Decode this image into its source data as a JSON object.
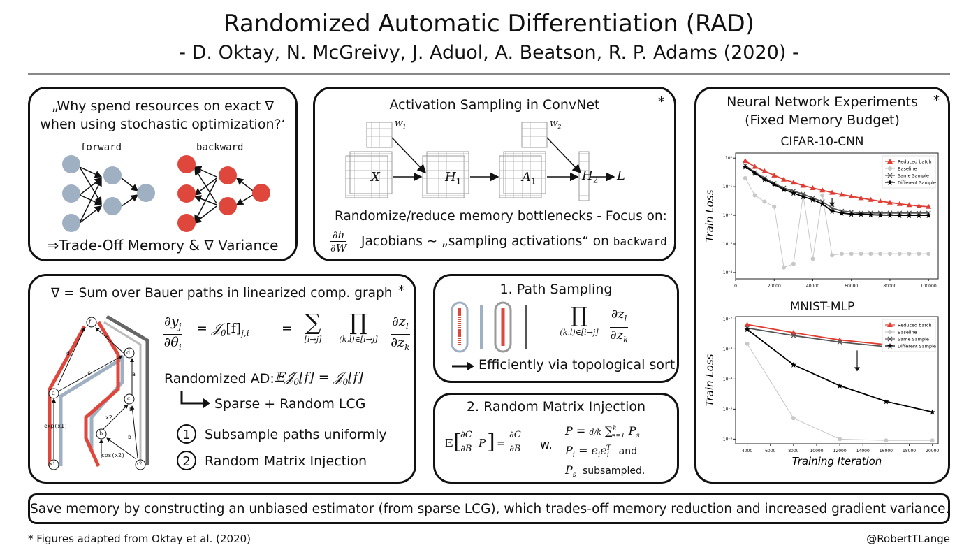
{
  "header": {
    "title": "Randomized Automatic Differentiation (RAD)",
    "authors": "- D. Oktay, N. McGreivy, J. Aduol, A. Beatson, R. P. Adams (2020) -"
  },
  "panel_why": {
    "quote_line1": "„Why spend resources on exact ∇",
    "quote_line2": "when using stochastic optimization?‘",
    "forward_label": "forward",
    "backward_label": "backward",
    "tradeoff": "⇒Trade-Off Memory & ∇ Variance",
    "colors": {
      "forward": "#9fb0c3",
      "backward": "#e0473c"
    }
  },
  "panel_conv": {
    "title": "Activation Sampling in ConvNet",
    "star": "*",
    "nodes": [
      "X",
      "H",
      "A",
      "H",
      "L"
    ],
    "node_subs": [
      "",
      "1",
      "1",
      "2",
      ""
    ],
    "weights": [
      "W",
      "W"
    ],
    "weight_subs": [
      "1",
      "2"
    ],
    "line1": "Randomize/reduce memory bottlenecks - Focus on:",
    "frac_num": "∂h",
    "frac_den": "∂W",
    "line2_a": "Jacobians ∼ „sampling activations“ on",
    "line2_b": "backward"
  },
  "panel_bauer": {
    "title": "∇ = Sum over Bauer paths in linearized comp. graph",
    "star": "*",
    "graph_nodes": [
      "f",
      "d",
      "a",
      "c",
      "b",
      "x1",
      "x2"
    ],
    "edge_labels": [
      "d",
      "a",
      "c",
      "exp(x1)",
      "x2",
      "b",
      "cos(x2)",
      "a",
      "b"
    ],
    "eq_lhs_num": "∂y",
    "eq_lhs_num_sub": "j",
    "eq_lhs_den": "∂θ",
    "eq_lhs_den_sub": "i",
    "eq_jac": "= 𝒥",
    "eq_jac_sub": "θ",
    "eq_jac_arg": "[f]",
    "eq_jac_idx": "j,i",
    "eq_eq": "=",
    "sum_sym": "∑",
    "sum_sub": "[i→j]",
    "prod_sym": "∏",
    "prod_sub": "(k,l)∈[i→j]",
    "frac_num": "∂z",
    "frac_num_sub": "l",
    "frac_den": "∂z",
    "frac_den_sub": "k",
    "rad_label": "Randomized AD:",
    "rad_eq": "𝔼𝒥̂",
    "rad_eq_sub": "θ",
    "rad_eq_rest": "[f] = 𝒥",
    "rad_eq_rest_sub": "θ",
    "rad_eq_end": "[f]",
    "sparse": "Sparse + Random LCG",
    "items": [
      {
        "num": "1",
        "text": "Subsample paths uniformly"
      },
      {
        "num": "2",
        "text": "Random Matrix Injection"
      }
    ]
  },
  "panel_path": {
    "title": "1. Path Sampling",
    "prod_sym": "∏",
    "prod_sub": "(k,l)∈[i→j]",
    "frac_num": "∂z",
    "frac_num_sub": "l",
    "frac_den": "∂z",
    "frac_den_sub": "k",
    "efficient": "Efficiently via topological sort"
  },
  "panel_rmi": {
    "title": "2. Random Matrix Injection",
    "lhs": "𝔼",
    "lhs_num": "∂C",
    "lhs_den": "∂B",
    "lhs_P": "P",
    "eq": "=",
    "rhs_num": "∂C",
    "rhs_den": "∂B",
    "w": "w.",
    "def1_lhs": "P =",
    "def1_frac": "d/k",
    "def1_sum": "∑",
    "def1_sum_top": "k",
    "def1_sum_sub": "s=1",
    "def1_term": "P",
    "def1_term_sub": "s",
    "def2_lhs": "P",
    "def2_lhs_sub": "i",
    "def2_eq": "= e",
    "def2_e_sub": "i",
    "def2_e2": "e",
    "def2_e2_sub": "i",
    "def2_e2_sup": "T",
    "def2_and": "and",
    "def3": "P",
    "def3_sub": "s",
    "def3_rest": "subsampled."
  },
  "panel_nn": {
    "title_line1": "Neural Network Experiments",
    "title_line2": "(Fixed Memory Budget)",
    "star": "*"
  },
  "chart_data": [
    {
      "type": "line",
      "title": "CIFAR-10-CNN",
      "xlabel": "",
      "ylabel": "Train Loss",
      "yscale": "log",
      "ylim": [
        6e-05,
        1.5
      ],
      "xlim": [
        0,
        105000
      ],
      "x_ticks": [
        "0",
        "20000",
        "40000",
        "60000",
        "80000",
        "100000"
      ],
      "y_ticks": [
        "10⁰",
        "10⁻¹",
        "10⁻²",
        "10⁻³",
        "10⁻⁴"
      ],
      "legend": "top-right",
      "x": [
        5000,
        10000,
        15000,
        20000,
        25000,
        30000,
        35000,
        40000,
        45000,
        50000,
        55000,
        60000,
        65000,
        70000,
        75000,
        80000,
        85000,
        90000,
        95000,
        100000
      ],
      "series": [
        {
          "name": "Reduced batch",
          "color": "#e03c31",
          "marker": "triangle",
          "values": [
            0.8,
            0.5,
            0.35,
            0.25,
            0.18,
            0.14,
            0.11,
            0.09,
            0.075,
            0.062,
            0.053,
            0.046,
            0.04,
            0.035,
            0.031,
            0.028,
            0.025,
            0.023,
            0.021,
            0.02
          ]
        },
        {
          "name": "Baseline",
          "color": "#c8c8c8",
          "marker": "circle",
          "values": [
            0.2,
            0.05,
            0.03,
            0.02,
            0.00015,
            0.0002,
            0.05,
            0.0003,
            0.05,
            0.0004,
            0.00045,
            0.00045,
            0.00045,
            0.00045,
            0.00045,
            0.00045,
            0.00045,
            0.00045,
            0.00045,
            0.00045
          ]
        },
        {
          "name": "Same Sample",
          "color": "#555555",
          "marker": "x",
          "values": [
            0.55,
            0.32,
            0.2,
            0.13,
            0.09,
            0.07,
            0.055,
            0.04,
            0.03,
            0.018,
            0.014,
            0.013,
            0.012,
            0.012,
            0.012,
            0.012,
            0.012,
            0.012,
            0.012,
            0.012
          ]
        },
        {
          "name": "Different Sample",
          "color": "#000000",
          "marker": "star",
          "values": [
            0.5,
            0.3,
            0.18,
            0.12,
            0.08,
            0.06,
            0.045,
            0.035,
            0.025,
            0.014,
            0.012,
            0.011,
            0.011,
            0.0105,
            0.0102,
            0.0101,
            0.01,
            0.01,
            0.01,
            0.01
          ]
        }
      ]
    },
    {
      "type": "line",
      "title": "MNIST-MLP",
      "xlabel": "Training Iteration",
      "ylabel": "Train Loss",
      "yscale": "log",
      "ylim": [
        7e-07,
        0.012
      ],
      "xlim": [
        3000,
        20500
      ],
      "x_ticks": [
        "4000",
        "6000",
        "8000",
        "10000",
        "12000",
        "14000",
        "16000",
        "18000",
        "20000"
      ],
      "y_ticks": [
        "10⁻²",
        "10⁻³",
        "10⁻⁴",
        "10⁻⁵",
        "10⁻⁶"
      ],
      "legend": "top-right",
      "x": [
        4000,
        8000,
        12000,
        16000,
        20000
      ],
      "series": [
        {
          "name": "Reduced batch",
          "color": "#e03c31",
          "marker": "triangle",
          "values": [
            0.0065,
            0.0035,
            0.002,
            0.0014,
            0.001
          ]
        },
        {
          "name": "Baseline",
          "color": "#c8c8c8",
          "marker": "circle",
          "values": [
            0.0015,
            5e-06,
            1e-06,
            9e-07,
            9e-07
          ]
        },
        {
          "name": "Same Sample",
          "color": "#555555",
          "marker": "x",
          "values": [
            0.005,
            0.0028,
            0.0017,
            0.0012,
            0.00095
          ]
        },
        {
          "name": "Different Sample",
          "color": "#000000",
          "marker": "star",
          "values": [
            0.0045,
            0.0003,
            6e-05,
            1.8e-05,
            8e-06
          ]
        }
      ]
    }
  ],
  "summary": "Save memory by constructing an unbiased estimator (from sparse LCG), which trades-off memory reduction and increased gradient variance.",
  "footer": {
    "note": "* Figures adapted from Oktay et al. (2020)",
    "handle": "@RobertTLange"
  }
}
